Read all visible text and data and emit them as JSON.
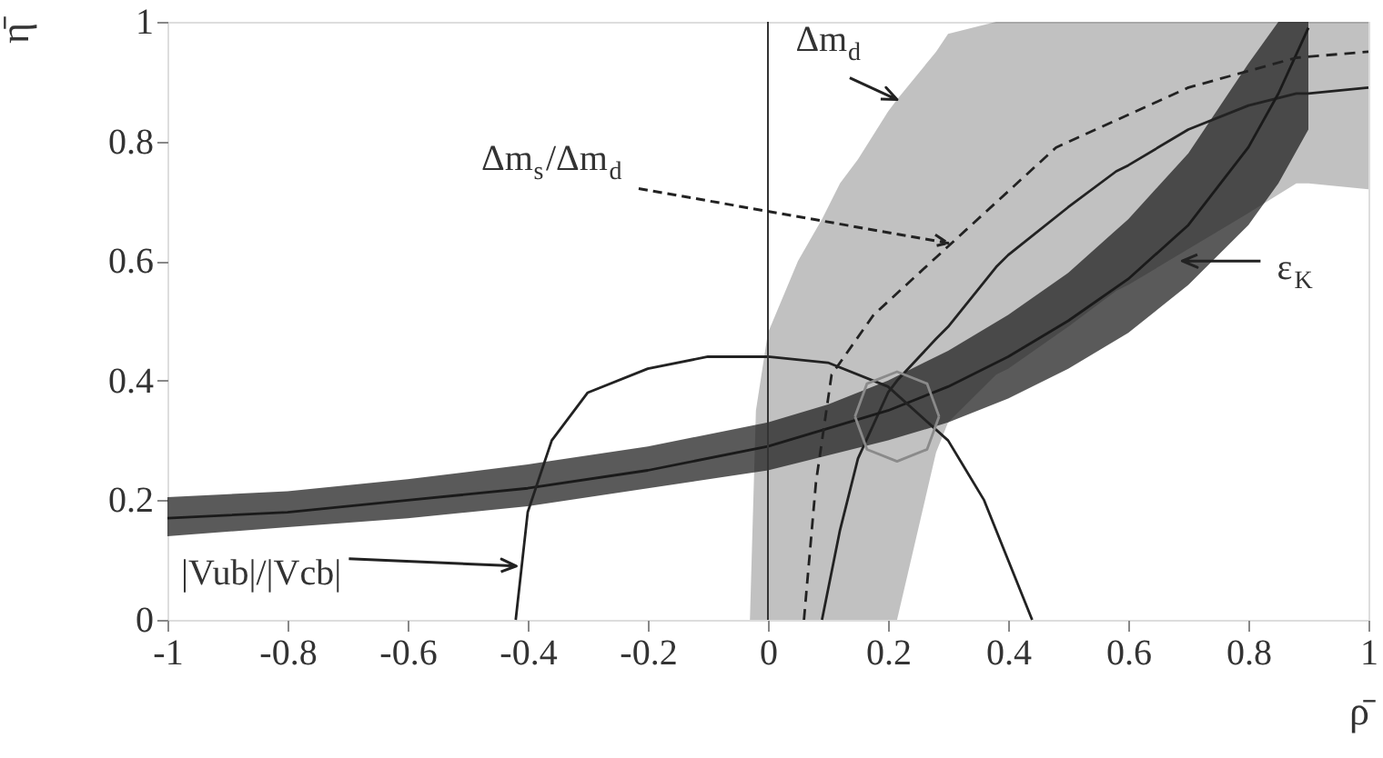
{
  "chart_data": {
    "type": "line",
    "xlabel": "ρ̄",
    "ylabel": "η̄",
    "xlim": [
      -1,
      1
    ],
    "ylim": [
      0,
      1
    ],
    "xticks": [
      -1,
      -0.8,
      -0.6,
      -0.4,
      -0.2,
      0,
      0.2,
      0.4,
      0.6,
      0.8,
      1
    ],
    "yticks": [
      0,
      0.2,
      0.4,
      0.6,
      0.8,
      1
    ],
    "grid": false,
    "marker": "none",
    "series": [
      {
        "color": "#222222",
        "line_style": "solid",
        "x": [
          -0.03,
          -0.02,
          0,
          0.05,
          0.09,
          0.12,
          0.15,
          0.2,
          0.215,
          0.28,
          0.3,
          0.38,
          0.4,
          0.5,
          0.58,
          0.6,
          0.7,
          0.8,
          0.88,
          0.9,
          1.0
        ],
        "values": [
          null,
          null,
          null,
          null,
          0,
          0.15,
          0.27,
          0.38,
          0.4,
          0.47,
          0.49,
          0.59,
          0.61,
          0.69,
          0.75,
          0.76,
          0.82,
          0.86,
          0.88,
          0.88,
          0.89
        ],
        "lower": [
          0,
          0,
          0,
          0,
          0,
          0,
          0,
          0,
          0,
          0.28,
          0.33,
          0.41,
          0.42,
          0.49,
          0.55,
          0.56,
          0.62,
          0.68,
          0.73,
          0.73,
          0.72
        ],
        "upper": [
          0,
          0.35,
          0.48,
          0.6,
          0.67,
          0.73,
          0.77,
          0.85,
          0.87,
          0.95,
          0.98,
          1,
          1,
          1,
          1,
          1,
          1,
          1,
          1,
          1,
          1
        ]
      },
      {
        "color": "#1a1a1a",
        "line_style": "solid",
        "x": [
          -1,
          -0.8,
          -0.6,
          -0.4,
          -0.2,
          0,
          0.1,
          0.2,
          0.3,
          0.4,
          0.5,
          0.6,
          0.7,
          0.8,
          0.85,
          0.9
        ],
        "values": [
          0.17,
          0.18,
          0.2,
          0.22,
          0.25,
          0.29,
          0.32,
          0.35,
          0.39,
          0.44,
          0.5,
          0.57,
          0.66,
          0.79,
          0.88,
          0.99
        ],
        "lower": [
          0.14,
          0.155,
          0.17,
          0.19,
          0.22,
          0.25,
          0.275,
          0.3,
          0.33,
          0.37,
          0.42,
          0.48,
          0.56,
          0.66,
          0.73,
          0.82
        ],
        "upper": [
          0.205,
          0.215,
          0.235,
          0.26,
          0.29,
          0.33,
          0.36,
          0.4,
          0.45,
          0.51,
          0.58,
          0.67,
          0.78,
          0.93,
          1,
          1
        ]
      },
      {
        "color": "#222222",
        "line_style": "dashed",
        "x": [
          0.06,
          0.08,
          0.106,
          0.176,
          0.306,
          0.48,
          0.7,
          0.88,
          1.0
        ],
        "values": [
          0,
          0.23,
          0.41,
          0.51,
          0.63,
          0.79,
          0.89,
          0.94,
          0.95
        ]
      },
      {
        "color": "#222222",
        "line_style": "solid",
        "x": [
          -0.42,
          -0.4,
          -0.36,
          -0.3,
          -0.2,
          -0.1,
          0,
          0.1,
          0.2,
          0.3,
          0.36,
          0.4,
          0.44
        ],
        "values": [
          0,
          0.18,
          0.3,
          0.38,
          0.42,
          0.44,
          0.44,
          0.43,
          0.39,
          0.3,
          0.2,
          0.1,
          0
        ]
      },
      {
        "color": "#8a8a8a",
        "line_style": "solid",
        "x": [
          0.145,
          0.165,
          0.215,
          0.265,
          0.285
        ],
        "values": [
          0.34,
          0.395,
          0.415,
          0.395,
          0.34
        ]
      },
      {
        "color": "#8a8a8a",
        "line_style": "solid",
        "x": [
          0.145,
          0.165,
          0.215,
          0.265,
          0.285
        ],
        "values": [
          0.34,
          0.285,
          0.265,
          0.285,
          0.34
        ]
      }
    ],
    "ref_lines": [
      {
        "axis": "x",
        "value": 0,
        "color": "#333333",
        "line_style": "solid"
      }
    ],
    "annotations": [
      {
        "text": "Δm$_{d}$",
        "x": 0.215,
        "y": 0.87
      },
      "Δm$_{s}$/Δm$_{d}$",
      {
        "text": "ε$_{K}$",
        "x": 0.69,
        "y": 0.6
      },
      "|Vub|/|Vcb|"
    ]
  }
}
